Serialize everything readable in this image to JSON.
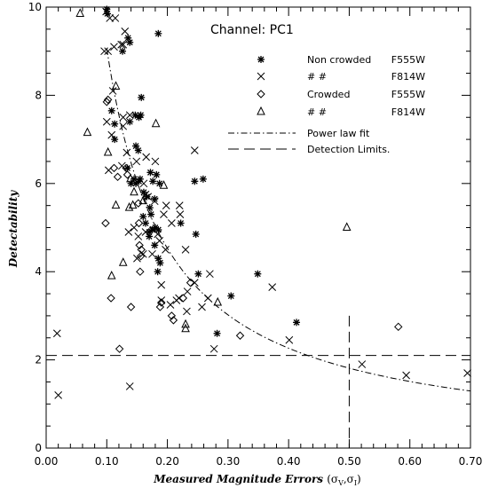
{
  "chart_data": {
    "type": "scatter",
    "channel_label": "Channel: PC1",
    "xlabel": "Measured Magnitude Errors",
    "xlabel_sub": "(σ",
    "xlabel_v": "V",
    "xlabel_comma": ",σ",
    "xlabel_i": "I",
    "xlabel_close": ")",
    "ylabel": "Detectability",
    "xlim": [
      0.0,
      0.7
    ],
    "ylim": [
      0,
      10
    ],
    "x_ticks": [
      "0.00",
      "0.10",
      "0.20",
      "0.30",
      "0.40",
      "0.50",
      "0.60",
      "0.70"
    ],
    "y_ticks": [
      "0",
      "2",
      "4",
      "6",
      "8",
      "10"
    ],
    "legend": [
      {
        "marker": "asterisk",
        "label": "Non crowded",
        "filter": "F555W"
      },
      {
        "marker": "x",
        "label": "#     #",
        "filter": "F814W"
      },
      {
        "marker": "diamond",
        "label": "Crowded",
        "filter": "F555W"
      },
      {
        "marker": "triangle",
        "label": "#     #",
        "filter": "F814W"
      },
      {
        "marker": "dashdot",
        "label": "Power law fit",
        "filter": ""
      },
      {
        "marker": "dashed",
        "label": "Detection Limits.",
        "filter": ""
      }
    ],
    "detection_limit_y": 2.1,
    "detection_limit_x": 0.5,
    "detection_limit_x_ymax": 3.0,
    "power_law_fit": {
      "a": 0.906,
      "b": -1.0,
      "xmin": 0.1,
      "xmax": 0.7
    },
    "series": [
      {
        "name": "Non crowded F555W",
        "marker": "asterisk",
        "points": [
          [
            0.1,
            9.95
          ],
          [
            0.101,
            9.85
          ],
          [
            0.135,
            9.3
          ],
          [
            0.138,
            9.2
          ],
          [
            0.126,
            9.0
          ],
          [
            0.185,
            9.4
          ],
          [
            0.157,
            7.95
          ],
          [
            0.156,
            7.55
          ],
          [
            0.153,
            7.5
          ],
          [
            0.108,
            7.65
          ],
          [
            0.147,
            7.55
          ],
          [
            0.138,
            7.4
          ],
          [
            0.113,
            7.35
          ],
          [
            0.113,
            7.0
          ],
          [
            0.148,
            6.85
          ],
          [
            0.152,
            6.75
          ],
          [
            0.172,
            6.25
          ],
          [
            0.182,
            6.2
          ],
          [
            0.134,
            6.35
          ],
          [
            0.145,
            6.1
          ],
          [
            0.153,
            6.05
          ],
          [
            0.155,
            6.1
          ],
          [
            0.148,
            6.0
          ],
          [
            0.14,
            6.0
          ],
          [
            0.176,
            6.05
          ],
          [
            0.187,
            6.0
          ],
          [
            0.166,
            5.7
          ],
          [
            0.179,
            5.65
          ],
          [
            0.161,
            5.8
          ],
          [
            0.171,
            5.45
          ],
          [
            0.173,
            5.3
          ],
          [
            0.16,
            5.25
          ],
          [
            0.164,
            5.1
          ],
          [
            0.18,
            5.0
          ],
          [
            0.185,
            4.95
          ],
          [
            0.17,
            4.9
          ],
          [
            0.175,
            4.95
          ],
          [
            0.222,
            5.1
          ],
          [
            0.179,
            4.6
          ],
          [
            0.185,
            4.3
          ],
          [
            0.188,
            4.2
          ],
          [
            0.184,
            4.0
          ],
          [
            0.245,
            6.05
          ],
          [
            0.259,
            6.1
          ],
          [
            0.247,
            4.85
          ],
          [
            0.251,
            3.95
          ],
          [
            0.282,
            2.6
          ],
          [
            0.305,
            3.45
          ],
          [
            0.349,
            3.95
          ],
          [
            0.413,
            2.85
          ],
          [
            0.17,
            4.8
          ]
        ]
      },
      {
        "name": "F814W",
        "marker": "x",
        "points": [
          [
            0.099,
            9.9
          ],
          [
            0.105,
            9.75
          ],
          [
            0.114,
            9.75
          ],
          [
            0.13,
            9.45
          ],
          [
            0.127,
            9.15
          ],
          [
            0.096,
            9.0
          ],
          [
            0.102,
            9.0
          ],
          [
            0.112,
            9.1
          ],
          [
            0.124,
            9.15
          ],
          [
            0.11,
            8.1
          ],
          [
            0.127,
            7.5
          ],
          [
            0.138,
            7.55
          ],
          [
            0.127,
            7.3
          ],
          [
            0.1,
            7.4
          ],
          [
            0.108,
            7.1
          ],
          [
            0.165,
            6.6
          ],
          [
            0.18,
            6.5
          ],
          [
            0.103,
            6.3
          ],
          [
            0.133,
            6.7
          ],
          [
            0.125,
            6.4
          ],
          [
            0.149,
            6.5
          ],
          [
            0.161,
            6.0
          ],
          [
            0.164,
            5.75
          ],
          [
            0.168,
            5.7
          ],
          [
            0.179,
            5.6
          ],
          [
            0.198,
            5.5
          ],
          [
            0.194,
            5.3
          ],
          [
            0.22,
            5.5
          ],
          [
            0.221,
            5.3
          ],
          [
            0.207,
            5.1
          ],
          [
            0.177,
            4.95
          ],
          [
            0.184,
            4.85
          ],
          [
            0.145,
            5.0
          ],
          [
            0.197,
            4.5
          ],
          [
            0.23,
            4.5
          ],
          [
            0.164,
            4.9
          ],
          [
            0.187,
            4.7
          ],
          [
            0.16,
            4.4
          ],
          [
            0.152,
            4.8
          ],
          [
            0.175,
            4.4
          ],
          [
            0.15,
            4.3
          ],
          [
            0.245,
            6.75
          ],
          [
            0.27,
            3.95
          ],
          [
            0.245,
            3.75
          ],
          [
            0.233,
            3.55
          ],
          [
            0.219,
            3.4
          ],
          [
            0.215,
            3.35
          ],
          [
            0.205,
            3.25
          ],
          [
            0.19,
            3.7
          ],
          [
            0.19,
            3.35
          ],
          [
            0.267,
            3.4
          ],
          [
            0.257,
            3.2
          ],
          [
            0.232,
            3.1
          ],
          [
            0.373,
            3.65
          ],
          [
            0.401,
            2.45
          ],
          [
            0.018,
            2.6
          ],
          [
            0.02,
            1.2
          ],
          [
            0.138,
            1.4
          ],
          [
            0.277,
            2.25
          ],
          [
            0.521,
            1.9
          ],
          [
            0.594,
            1.65
          ],
          [
            0.695,
            1.7
          ],
          [
            0.136,
            4.9
          ]
        ]
      },
      {
        "name": "Crowded F555W",
        "marker": "diamond",
        "points": [
          [
            0.102,
            7.9
          ],
          [
            0.1,
            7.85
          ],
          [
            0.112,
            6.35
          ],
          [
            0.118,
            6.15
          ],
          [
            0.132,
            6.35
          ],
          [
            0.152,
            5.55
          ],
          [
            0.153,
            5.1
          ],
          [
            0.154,
            4.6
          ],
          [
            0.157,
            4.5
          ],
          [
            0.156,
            4.35
          ],
          [
            0.098,
            5.1
          ],
          [
            0.155,
            4.0
          ],
          [
            0.19,
            3.3
          ],
          [
            0.188,
            3.2
          ],
          [
            0.207,
            3.0
          ],
          [
            0.226,
            3.4
          ],
          [
            0.238,
            3.75
          ],
          [
            0.32,
            2.55
          ],
          [
            0.21,
            2.9
          ],
          [
            0.14,
            3.2
          ],
          [
            0.107,
            3.4
          ],
          [
            0.121,
            2.25
          ],
          [
            0.581,
            2.75
          ],
          [
            0.134,
            6.2
          ]
        ]
      },
      {
        "name": "Crowded F814W",
        "marker": "triangle",
        "points": [
          [
            0.056,
            9.85
          ],
          [
            0.115,
            8.2
          ],
          [
            0.068,
            7.15
          ],
          [
            0.181,
            7.35
          ],
          [
            0.102,
            6.7
          ],
          [
            0.137,
            5.45
          ],
          [
            0.115,
            5.5
          ],
          [
            0.145,
            5.8
          ],
          [
            0.16,
            5.6
          ],
          [
            0.143,
            5.5
          ],
          [
            0.194,
            5.95
          ],
          [
            0.108,
            3.9
          ],
          [
            0.127,
            4.2
          ],
          [
            0.23,
            2.8
          ],
          [
            0.23,
            2.7
          ],
          [
            0.283,
            3.3
          ],
          [
            0.496,
            5.0
          ],
          [
            0.139,
            6.1
          ]
        ]
      }
    ]
  }
}
